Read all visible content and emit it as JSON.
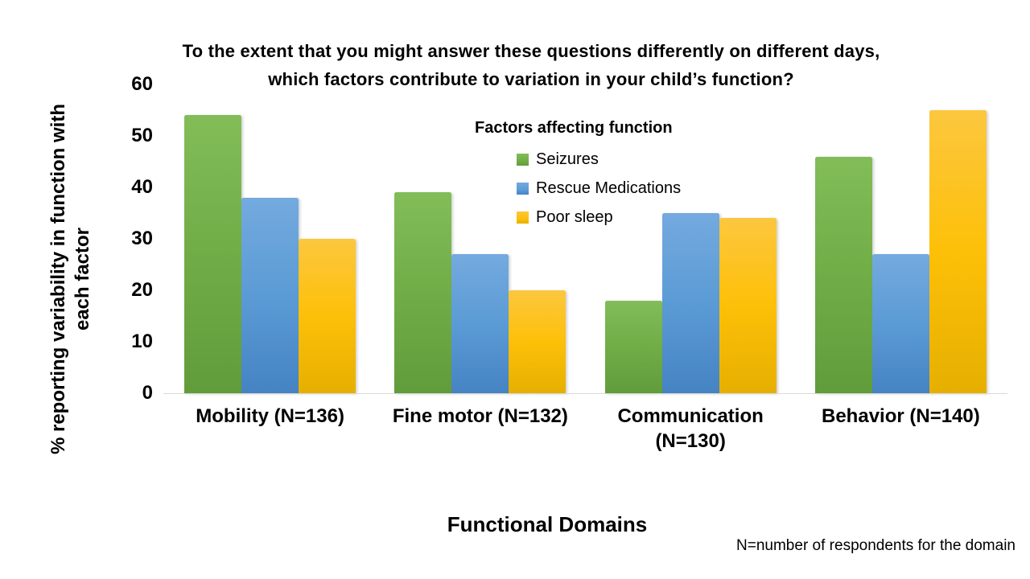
{
  "chart_data": {
    "type": "bar",
    "title": "To the extent that you might answer these questions differently on different days, which factors contribute to variation in your child’s function?",
    "title_lines": [
      "To the extent that you might answer these questions differently on different days,",
      "which factors contribute to variation in your child’s function?"
    ],
    "categories": [
      "Mobility (N=136)",
      "Fine motor (N=132)",
      "Communication (N=130)",
      "Behavior (N=140)"
    ],
    "series": [
      {
        "name": "Seizures",
        "color": "#70ad47",
        "color_light": "#82bd58",
        "color_dark": "#619c3b",
        "values": [
          54,
          39,
          18,
          46
        ]
      },
      {
        "name": "Rescue Medications",
        "color": "#5b9bd5",
        "color_light": "#74aadf",
        "color_dark": "#4583c3",
        "values": [
          38,
          27,
          35,
          27
        ]
      },
      {
        "name": "Poor sleep",
        "color": "#fdc008",
        "color_light": "#fcc73f",
        "color_dark": "#e6af00",
        "values": [
          30,
          20,
          34,
          55
        ]
      }
    ],
    "legend": {
      "title": "Factors affecting function",
      "position": "inside-top-center"
    },
    "xlabel": "Functional Domains",
    "ylabel": "% reporting variability in function with each factor",
    "ylabel_lines": [
      "% reporting variability in function with",
      "each factor"
    ],
    "ylim": [
      0,
      60
    ],
    "y_ticks": [
      0,
      10,
      20,
      30,
      40,
      50,
      60
    ],
    "grid": false,
    "footnote": "N=number of respondents for the domain"
  },
  "ui": {
    "background_color": "#ffffff",
    "axis_line_color": "#d9d9d9",
    "text_color": "#000000"
  }
}
